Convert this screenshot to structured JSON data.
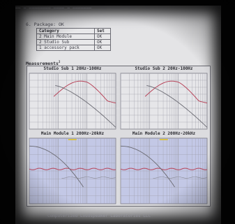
{
  "header": {
    "top_line": "—— — ———————— ———— — ———————"
  },
  "package": {
    "title": "6. Package: OK",
    "headers": [
      "Category",
      "Set"
    ],
    "rows": [
      [
        "2 Main Module",
        "OK"
      ],
      [
        "2 Studio Sub",
        "OK"
      ],
      [
        "1 accessory pack",
        "OK"
      ]
    ]
  },
  "measurements": {
    "title": "Measurements",
    "footnote_mark": "2",
    "panels": [
      {
        "title": "Studio Sub 1 20Hz-100Hz",
        "kind": "sub"
      },
      {
        "title": "Studio Sub 2 20Hz-100Hz",
        "kind": "sub"
      },
      {
        "title": "Main Module 1 200Hz-20kHz",
        "kind": "main"
      },
      {
        "title": "Main Module 2 200Hz-20kHz",
        "kind": "main"
      }
    ]
  },
  "colors": {
    "response": "#b8455a",
    "phase": "#6a6a72",
    "grid": "#9c9ca6",
    "main_bg": "#c3c8e6"
  },
  "footer": {
    "text": "Computerized Loudspeaker Laboratories LLC"
  }
}
